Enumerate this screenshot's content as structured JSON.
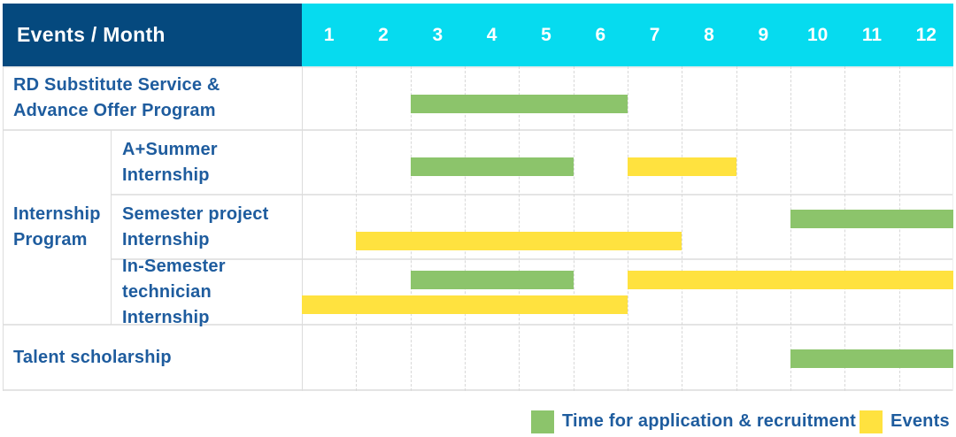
{
  "table": {
    "corner_label": "Events / Month",
    "months": [
      "1",
      "2",
      "3",
      "4",
      "5",
      "6",
      "7",
      "8",
      "9",
      "10",
      "11",
      "12"
    ]
  },
  "colors": {
    "header_bg": "#05497E",
    "months_bg": "#06DBEF",
    "bar_green": "#8CC46B",
    "bar_yellow": "#FFE23F",
    "label_text": "#1E5C9E",
    "grid_line": "#E4E4E4"
  },
  "legend": {
    "items": [
      {
        "color": "green",
        "label": "Time for application & recruitment"
      },
      {
        "color": "yellow",
        "label": "Events"
      }
    ]
  },
  "chart_data": {
    "type": "bar",
    "subtype": "gantt-schedule",
    "title": "Events / Month",
    "x_axis": {
      "label": "Month",
      "ticks": [
        1,
        2,
        3,
        4,
        5,
        6,
        7,
        8,
        9,
        10,
        11,
        12
      ],
      "range": [
        1,
        12
      ]
    },
    "legend_entries": [
      "Time for application & recruitment",
      "Events"
    ],
    "group_label_lines": [
      "Internship",
      "Program"
    ],
    "rows": [
      {
        "group": "",
        "label": "RD Substitute Service & Advance Offer Program",
        "label_lines": [
          "RD Substitute Service &",
          "Advance Offer Program"
        ],
        "bars": [
          {
            "series": "Time for application & recruitment",
            "color": "green",
            "start_month": 3,
            "end_month": 6,
            "line": 0
          }
        ]
      },
      {
        "group": "Internship Program",
        "label": "A+Summer Internship",
        "label_lines": [
          "A+Summer",
          "Internship"
        ],
        "bars": [
          {
            "series": "Time for application & recruitment",
            "color": "green",
            "start_month": 3,
            "end_month": 5,
            "line": 0
          },
          {
            "series": "Events",
            "color": "yellow",
            "start_month": 7,
            "end_month": 8,
            "line": 0
          }
        ]
      },
      {
        "group": "Internship Program",
        "label": "Semester project Internship",
        "label_lines": [
          "Semester project",
          "Internship"
        ],
        "bars": [
          {
            "series": "Time for application & recruitment",
            "color": "green",
            "start_month": 10,
            "end_month": 12,
            "line": 0
          },
          {
            "series": "Events",
            "color": "yellow",
            "start_month": 2,
            "end_month": 7,
            "line": 1
          }
        ]
      },
      {
        "group": "Internship Program",
        "label": "In-Semester technician Internship",
        "label_lines": [
          "In-Semester",
          "technician Internship"
        ],
        "bars": [
          {
            "series": "Time for application & recruitment",
            "color": "green",
            "start_month": 3,
            "end_month": 5,
            "line": 0
          },
          {
            "series": "Events",
            "color": "yellow",
            "start_month": 7,
            "end_month": 12,
            "line": 0
          },
          {
            "series": "Events",
            "color": "yellow",
            "start_month": 1,
            "end_month": 6,
            "line": 1
          }
        ]
      },
      {
        "group": "",
        "label": "Talent scholarship",
        "label_lines": [
          "Talent scholarship"
        ],
        "bars": [
          {
            "series": "Time for application & recruitment",
            "color": "green",
            "start_month": 10,
            "end_month": 12,
            "line": 0
          }
        ]
      }
    ]
  }
}
